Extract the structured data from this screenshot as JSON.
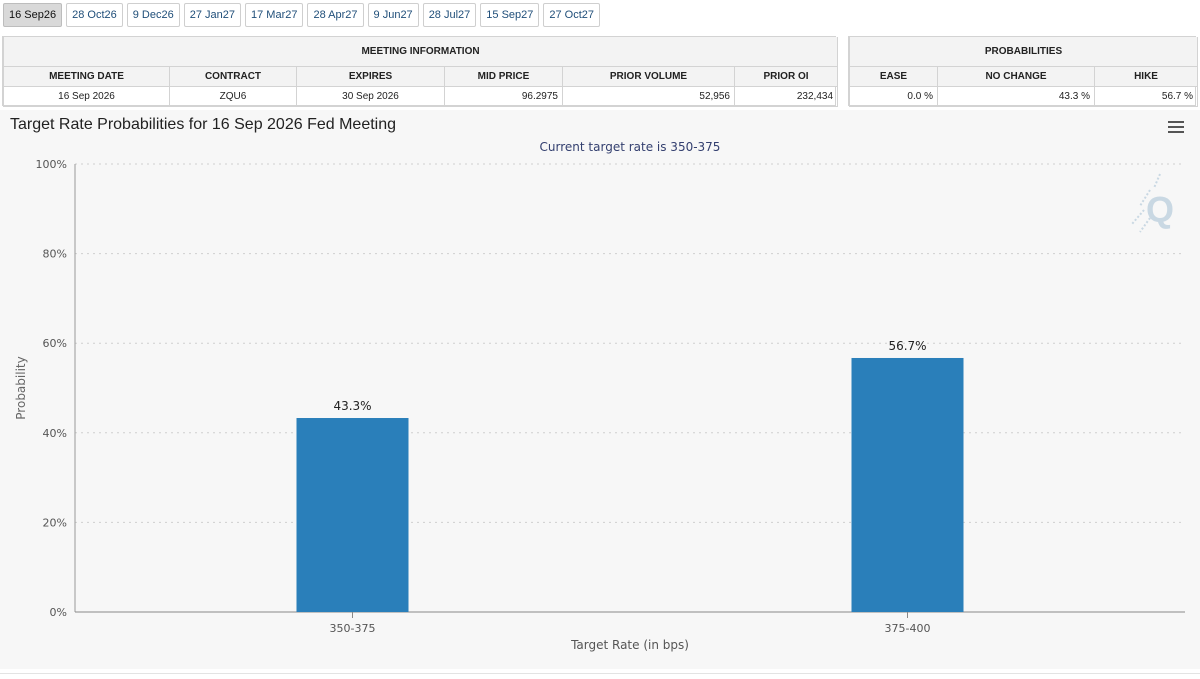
{
  "tabs": [
    "16 Sep26",
    "28 Oct26",
    "9 Dec26",
    "27 Jan27",
    "17 Mar27",
    "28 Apr27",
    "9 Jun27",
    "28 Jul27",
    "15 Sep27",
    "27 Oct27"
  ],
  "active_tab_index": 0,
  "meeting_info": {
    "caption": "MEETING INFORMATION",
    "headers": [
      "MEETING DATE",
      "CONTRACT",
      "EXPIRES",
      "MID PRICE",
      "PRIOR VOLUME",
      "PRIOR OI"
    ],
    "row": [
      "16 Sep 2026",
      "ZQU6",
      "30 Sep 2026",
      "96.2975",
      "52,956",
      "232,434"
    ]
  },
  "probabilities": {
    "caption": "PROBABILITIES",
    "headers": [
      "EASE",
      "NO CHANGE",
      "HIKE"
    ],
    "row": [
      "0.0 %",
      "43.3 %",
      "56.7 %"
    ]
  },
  "chart_title": "Target Rate Probabilities for 16 Sep 2026 Fed Meeting",
  "menu_icon": "hamburger-menu-icon",
  "colors": {
    "bar": "#2a7fba",
    "watermark": "#c9d8e3"
  },
  "chart_data": {
    "type": "bar",
    "subtitle": "Current target rate is 350-375",
    "categories": [
      "350-375",
      "375-400"
    ],
    "values": [
      43.3,
      56.7
    ],
    "data_labels": [
      "43.3%",
      "56.7%"
    ],
    "xlabel": "Target Rate (in bps)",
    "ylabel": "Probability",
    "ylim": [
      0,
      100
    ],
    "yticks": [
      "0%",
      "20%",
      "40%",
      "60%",
      "80%",
      "100%"
    ],
    "grid": true
  }
}
